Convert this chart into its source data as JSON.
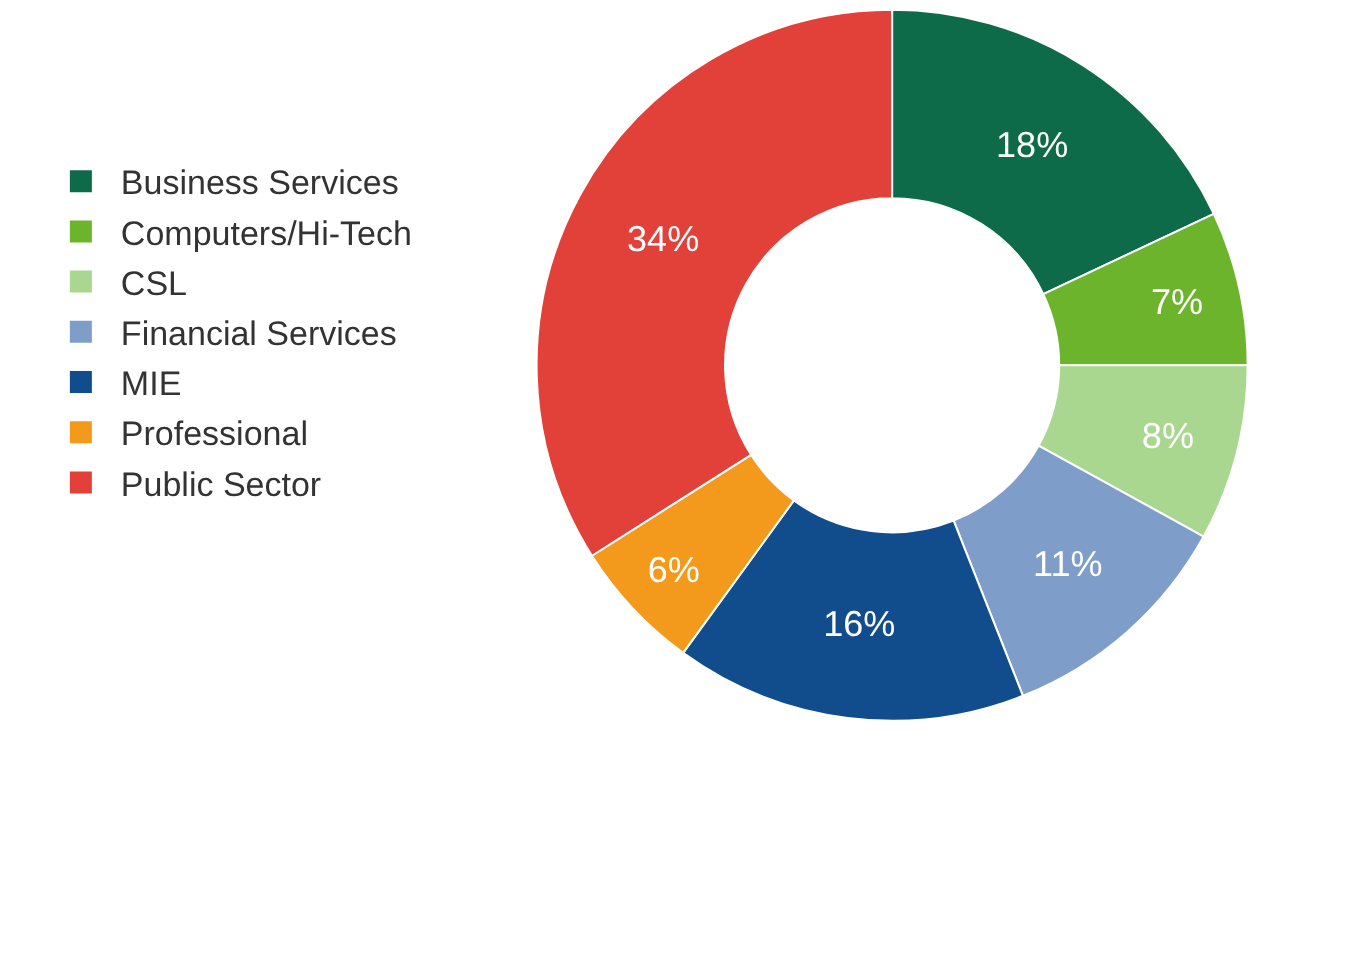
{
  "chart_data": {
    "type": "donut",
    "categories": [
      "Business Services",
      "Computers/Hi-Tech",
      "CSL",
      "Financial Services",
      "MIE",
      "Professional",
      "Public Sector"
    ],
    "values": [
      18,
      7,
      8,
      11,
      16,
      6,
      34
    ],
    "value_labels": [
      "18%",
      "7%",
      "8%",
      "11%",
      "16%",
      "6%",
      "34%"
    ],
    "colors": [
      "#0e6b4a",
      "#6cb42c",
      "#a9d78f",
      "#7f9dc9",
      "#114d8c",
      "#f39a1c",
      "#e2413a"
    ],
    "legend": "left"
  }
}
